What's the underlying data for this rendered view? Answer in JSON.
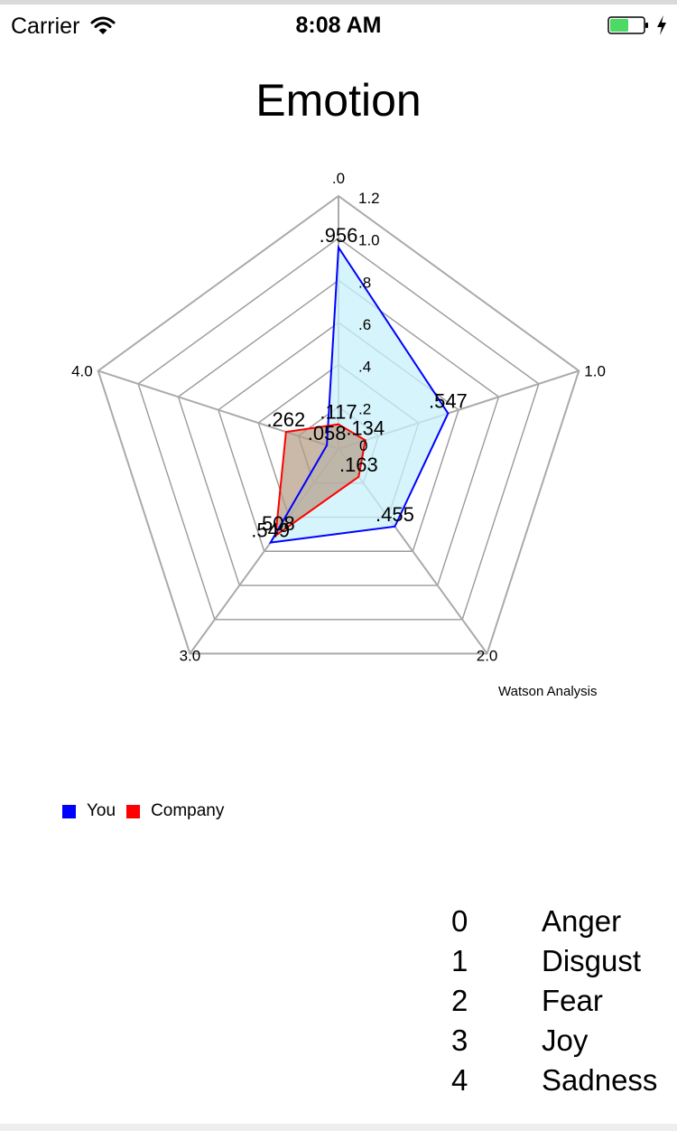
{
  "status_bar": {
    "carrier": "Carrier",
    "time": "8:08 AM",
    "battery_color": "#4cd964"
  },
  "page": {
    "title": "Emotion",
    "description": "Watson Analysis"
  },
  "key": [
    {
      "num": "0",
      "label": "Anger"
    },
    {
      "num": "1",
      "label": "Disgust"
    },
    {
      "num": "2",
      "label": "Fear"
    },
    {
      "num": "3",
      "label": "Joy"
    },
    {
      "num": "4",
      "label": "Sadness"
    }
  ],
  "chart_data": {
    "type": "radar",
    "axes": [
      ".0",
      "1.0",
      "2.0",
      "3.0",
      "4.0"
    ],
    "radial_ticks": [
      ".2",
      ".4",
      ".6",
      ".8",
      "1.0",
      "1.2"
    ],
    "radial_range": [
      0,
      1.2
    ],
    "zero_label": "0",
    "series": [
      {
        "name": "You",
        "color": "#0000ff",
        "fill": "#c8f0fa",
        "values": [
          0.956,
          0.547,
          0.455,
          0.549,
          0.058
        ],
        "labels": [
          ".956",
          ".547",
          ".455",
          ".549",
          ".058"
        ]
      },
      {
        "name": "Company",
        "color": "#ff0000",
        "fill": "#b39b85",
        "values": [
          0.117,
          0.134,
          0.163,
          0.508,
          0.262
        ],
        "labels": [
          ".117",
          ".134",
          ".163",
          ".508",
          ".262"
        ]
      }
    ],
    "legend_position": "bottom-left"
  }
}
